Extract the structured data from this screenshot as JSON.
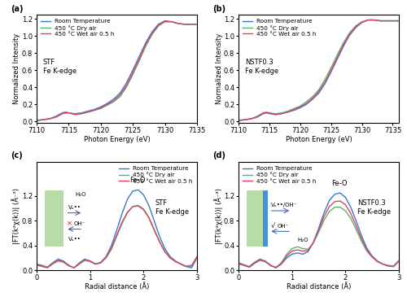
{
  "chart_data": [
    {
      "type": "line",
      "panel": "(a)",
      "x_label": "Photon Energy (eV)",
      "y_label": "Normalized Intensity",
      "xlim": [
        7110,
        7135
      ],
      "ylim": [
        -0.02,
        1.25
      ],
      "xticks": [
        7110,
        7115,
        7120,
        7125,
        7130,
        7135
      ],
      "yticks": [
        0.0,
        0.2,
        0.4,
        0.6,
        0.8,
        1.0,
        1.2
      ],
      "legend": "upper left",
      "annotations": [
        "STF",
        "Fe K-edge"
      ],
      "x": [
        7110,
        7111,
        7112,
        7113,
        7114,
        7114.5,
        7115,
        7116,
        7117,
        7118,
        7119,
        7120,
        7121,
        7122,
        7123,
        7124,
        7125,
        7126,
        7127,
        7128,
        7129,
        7130,
        7131,
        7132,
        7133,
        7134,
        7135
      ],
      "series": [
        {
          "name": "Room Temperature",
          "color": "#3a78c6",
          "values": [
            0.01,
            0.02,
            0.03,
            0.06,
            0.1,
            0.11,
            0.1,
            0.09,
            0.1,
            0.12,
            0.14,
            0.17,
            0.21,
            0.26,
            0.33,
            0.45,
            0.6,
            0.76,
            0.92,
            1.05,
            1.14,
            1.18,
            1.17,
            1.15,
            1.14,
            1.14,
            1.14
          ]
        },
        {
          "name": "450 °C Dry air",
          "color": "#55b76a",
          "values": [
            0.01,
            0.02,
            0.03,
            0.05,
            0.09,
            0.1,
            0.1,
            0.08,
            0.09,
            0.11,
            0.13,
            0.15,
            0.19,
            0.23,
            0.29,
            0.4,
            0.55,
            0.71,
            0.88,
            1.02,
            1.12,
            1.17,
            1.17,
            1.15,
            1.14,
            1.14,
            1.14
          ]
        },
        {
          "name": "450 °C Wet air 0.5 h",
          "color": "#e0406a",
          "values": [
            0.01,
            0.02,
            0.03,
            0.05,
            0.09,
            0.1,
            0.1,
            0.08,
            0.09,
            0.11,
            0.13,
            0.16,
            0.2,
            0.24,
            0.31,
            0.42,
            0.57,
            0.73,
            0.9,
            1.03,
            1.13,
            1.17,
            1.17,
            1.15,
            1.14,
            1.14,
            1.14
          ]
        }
      ]
    },
    {
      "type": "line",
      "panel": "(b)",
      "x_label": "Photon Energy (eV)",
      "y_label": "Normalized Intensity",
      "xlim": [
        7110,
        7136
      ],
      "ylim": [
        -0.02,
        1.25
      ],
      "xticks": [
        7110,
        7115,
        7120,
        7125,
        7130,
        7135
      ],
      "yticks": [
        0.0,
        0.2,
        0.4,
        0.6,
        0.8,
        1.0,
        1.2
      ],
      "legend": "upper left",
      "annotations": [
        "NSTF0.3",
        "Fe K-edge"
      ],
      "x": [
        7110,
        7111,
        7112,
        7113,
        7114,
        7114.5,
        7115,
        7116,
        7117,
        7118,
        7119,
        7120,
        7121,
        7122,
        7123,
        7124,
        7125,
        7126,
        7127,
        7128,
        7129,
        7130,
        7131,
        7132,
        7133,
        7134,
        7135,
        7136
      ],
      "series": [
        {
          "name": "Room Temperature",
          "color": "#3a78c6",
          "values": [
            0.01,
            0.02,
            0.03,
            0.05,
            0.09,
            0.1,
            0.09,
            0.08,
            0.09,
            0.11,
            0.13,
            0.16,
            0.2,
            0.26,
            0.33,
            0.44,
            0.58,
            0.73,
            0.88,
            1.01,
            1.1,
            1.16,
            1.19,
            1.19,
            1.18,
            1.18,
            1.18,
            1.18
          ]
        },
        {
          "name": "450 °C Dry air",
          "color": "#55b76a",
          "values": [
            0.01,
            0.02,
            0.03,
            0.06,
            0.1,
            0.11,
            0.1,
            0.09,
            0.1,
            0.12,
            0.15,
            0.18,
            0.23,
            0.29,
            0.37,
            0.49,
            0.63,
            0.78,
            0.92,
            1.04,
            1.12,
            1.17,
            1.19,
            1.19,
            1.18,
            1.18,
            1.18,
            1.18
          ]
        },
        {
          "name": "450 °C Wet air 0.5 h",
          "color": "#e0406a",
          "values": [
            0.01,
            0.02,
            0.03,
            0.05,
            0.1,
            0.1,
            0.1,
            0.08,
            0.09,
            0.11,
            0.14,
            0.17,
            0.21,
            0.27,
            0.35,
            0.46,
            0.6,
            0.75,
            0.9,
            1.02,
            1.11,
            1.16,
            1.19,
            1.19,
            1.18,
            1.18,
            1.18,
            1.18
          ]
        }
      ]
    },
    {
      "type": "line",
      "panel": "(c)",
      "x_label": "Radial distance (Å)",
      "y_label": "|FT(k²χ(k))| (Å⁻³)",
      "xlim": [
        0,
        3
      ],
      "ylim": [
        0,
        1.75
      ],
      "xticks": [
        0,
        1,
        2,
        3
      ],
      "yticks": [
        0.0,
        0.4,
        0.8,
        1.2
      ],
      "legend": "upper right",
      "annotations": [
        "Fe-O",
        "STF",
        "Fe K-edge",
        "H₂O",
        "Vₒ••",
        "OH⁻",
        "×",
        "Vₒ••"
      ],
      "x": [
        0.0,
        0.1,
        0.2,
        0.3,
        0.4,
        0.5,
        0.6,
        0.7,
        0.8,
        0.9,
        1.0,
        1.1,
        1.2,
        1.3,
        1.4,
        1.5,
        1.6,
        1.7,
        1.8,
        1.9,
        2.0,
        2.1,
        2.2,
        2.3,
        2.4,
        2.5,
        2.6,
        2.7,
        2.8,
        2.9,
        3.0
      ],
      "series": [
        {
          "name": "Room Temperature",
          "color": "#3a78c6",
          "values": [
            0.1,
            0.08,
            0.05,
            0.12,
            0.18,
            0.15,
            0.08,
            0.04,
            0.12,
            0.18,
            0.15,
            0.1,
            0.13,
            0.22,
            0.4,
            0.65,
            0.92,
            1.15,
            1.28,
            1.3,
            1.22,
            1.05,
            0.8,
            0.55,
            0.35,
            0.22,
            0.15,
            0.1,
            0.06,
            0.04,
            0.2
          ]
        },
        {
          "name": "450 °C Dry air",
          "color": "#55b76a",
          "values": [
            0.08,
            0.06,
            0.04,
            0.1,
            0.15,
            0.13,
            0.07,
            0.04,
            0.1,
            0.16,
            0.14,
            0.1,
            0.12,
            0.2,
            0.34,
            0.55,
            0.76,
            0.93,
            1.03,
            1.05,
            0.99,
            0.86,
            0.66,
            0.47,
            0.3,
            0.2,
            0.14,
            0.1,
            0.07,
            0.08,
            0.22
          ]
        },
        {
          "name": "450 °C Wet air 0.5 h",
          "color": "#e0406a",
          "values": [
            0.09,
            0.07,
            0.04,
            0.11,
            0.16,
            0.14,
            0.08,
            0.04,
            0.11,
            0.17,
            0.15,
            0.1,
            0.12,
            0.21,
            0.36,
            0.57,
            0.78,
            0.94,
            1.03,
            1.04,
            0.98,
            0.85,
            0.65,
            0.46,
            0.3,
            0.2,
            0.14,
            0.1,
            0.06,
            0.07,
            0.21
          ]
        }
      ]
    },
    {
      "type": "line",
      "panel": "(d)",
      "x_label": "Radial distance (Å)",
      "y_label": "|FT(k²χ(k))| (Å⁻³)",
      "xlim": [
        0,
        3
      ],
      "ylim": [
        0,
        1.75
      ],
      "xticks": [
        0,
        1,
        2,
        3
      ],
      "yticks": [
        0.0,
        0.4,
        0.8,
        1.2
      ],
      "legend": "upper left",
      "annotations": [
        "Fe-O",
        "NSTF0.3",
        "Fe K-edge",
        "H₂O",
        "Vₒ••/OH⁻",
        "OH⁻",
        "√"
      ],
      "x": [
        0.0,
        0.1,
        0.2,
        0.3,
        0.4,
        0.5,
        0.6,
        0.7,
        0.8,
        0.9,
        1.0,
        1.1,
        1.2,
        1.3,
        1.4,
        1.5,
        1.6,
        1.7,
        1.8,
        1.9,
        2.0,
        2.1,
        2.2,
        2.3,
        2.4,
        2.5,
        2.6,
        2.7,
        2.8,
        2.9,
        3.0
      ],
      "series": [
        {
          "name": "Room Temperature",
          "color": "#3a78c6",
          "values": [
            0.12,
            0.09,
            0.06,
            0.13,
            0.18,
            0.15,
            0.08,
            0.04,
            0.1,
            0.2,
            0.26,
            0.28,
            0.26,
            0.3,
            0.45,
            0.68,
            0.93,
            1.13,
            1.23,
            1.25,
            1.18,
            1.02,
            0.8,
            0.56,
            0.36,
            0.23,
            0.15,
            0.1,
            0.07,
            0.06,
            0.15
          ]
        },
        {
          "name": "450 °C Dry air",
          "color": "#55b76a",
          "values": [
            0.1,
            0.08,
            0.05,
            0.11,
            0.16,
            0.14,
            0.07,
            0.05,
            0.12,
            0.26,
            0.35,
            0.38,
            0.35,
            0.34,
            0.44,
            0.62,
            0.81,
            0.95,
            1.02,
            1.02,
            0.96,
            0.84,
            0.66,
            0.47,
            0.31,
            0.21,
            0.14,
            0.1,
            0.08,
            0.07,
            0.16
          ]
        },
        {
          "name": "450 °C Wet air 0.5 h",
          "color": "#e0406a",
          "values": [
            0.11,
            0.08,
            0.05,
            0.12,
            0.17,
            0.14,
            0.08,
            0.04,
            0.11,
            0.23,
            0.31,
            0.33,
            0.31,
            0.32,
            0.45,
            0.65,
            0.87,
            1.03,
            1.11,
            1.12,
            1.06,
            0.92,
            0.72,
            0.51,
            0.33,
            0.22,
            0.14,
            0.1,
            0.07,
            0.06,
            0.15
          ]
        }
      ]
    }
  ]
}
